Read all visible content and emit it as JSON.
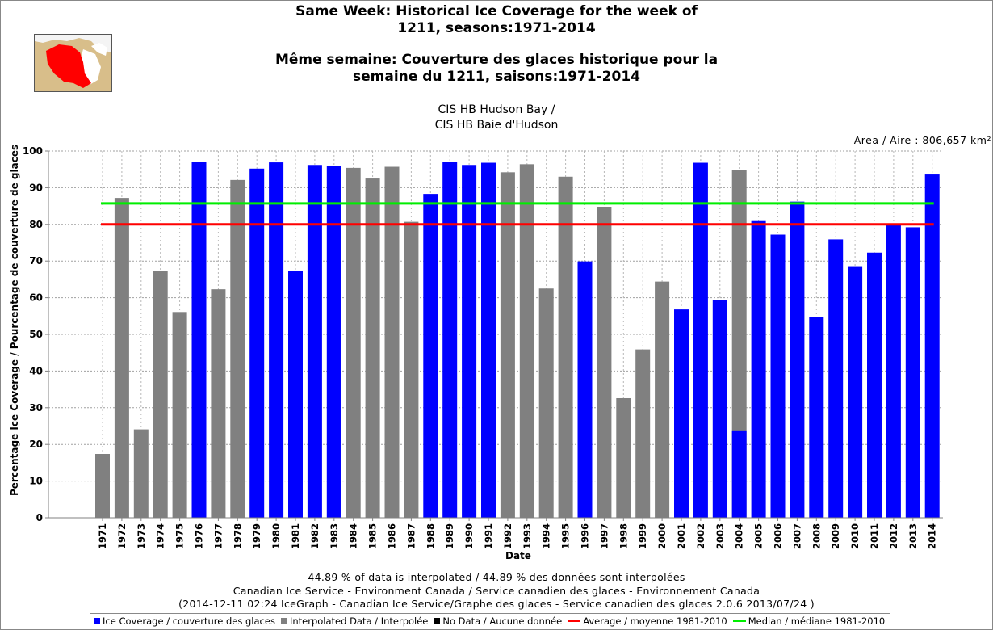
{
  "title_en": [
    "Same Week: Historical Ice Coverage for the week of",
    "1211, seasons:1971-2014"
  ],
  "title_fr": [
    "Même semaine: Couverture des glaces historique pour la",
    "semaine du 1211, saisons:1971-2014"
  ],
  "subtitle": [
    "CIS HB Hudson Bay /",
    "CIS HB Baie d'Hudson"
  ],
  "area_text": "Area / Aire : 806,657 km²",
  "colors": {
    "ice_coverage": "#0000ff",
    "interpolated": "#808080",
    "no_data": "#000000",
    "average": "#ff0000",
    "median": "#00ee00",
    "map_land": "#d8be8a",
    "map_region": "#ff0000"
  },
  "icons": {
    "region_map": "hudson-bay-region-map-icon"
  },
  "chart_data": {
    "type": "bar",
    "ylabel": "Percentage Ice Coverage / Pourcentage de couverture de glaces",
    "xlabel": "Date",
    "ylim": [
      0,
      100
    ],
    "yticks": [
      0,
      10,
      20,
      30,
      40,
      50,
      60,
      70,
      80,
      90,
      100
    ],
    "grid": true,
    "categories": [
      "1971",
      "1972",
      "1973",
      "1974",
      "1975",
      "1976",
      "1977",
      "1978",
      "1979",
      "1980",
      "1981",
      "1982",
      "1983",
      "1984",
      "1985",
      "1986",
      "1987",
      "1988",
      "1989",
      "1990",
      "1991",
      "1992",
      "1993",
      "1994",
      "1995",
      "1996",
      "1997",
      "1998",
      "1999",
      "2000",
      "2001",
      "2002",
      "2003",
      "2004",
      "2005",
      "2006",
      "2007",
      "2008",
      "2009",
      "2010",
      "2011",
      "2012",
      "2013",
      "2014"
    ],
    "series": [
      {
        "name": "Ice Coverage / couverture des glaces",
        "values": [
          null,
          null,
          null,
          null,
          null,
          97.1,
          null,
          null,
          95.2,
          96.9,
          67.3,
          96.2,
          95.9,
          null,
          null,
          null,
          null,
          88.3,
          97.1,
          96.2,
          96.8,
          null,
          null,
          null,
          null,
          69.9,
          null,
          null,
          null,
          null,
          56.8,
          96.8,
          59.3,
          23.6,
          80.9,
          77.2,
          86.2,
          54.8,
          75.9,
          68.6,
          72.3,
          79.9,
          79.2,
          93.6
        ]
      },
      {
        "name": "Interpolated Data / Interpolée",
        "values": [
          17.4,
          87.2,
          24.1,
          67.3,
          56.1,
          null,
          62.3,
          92.1,
          null,
          null,
          null,
          null,
          null,
          95.4,
          92.5,
          95.7,
          80.7,
          null,
          null,
          null,
          null,
          94.2,
          96.4,
          62.5,
          93.0,
          null,
          84.8,
          32.6,
          45.9,
          64.4,
          null,
          null,
          null,
          94.8,
          null,
          null,
          null,
          null,
          null,
          null,
          null,
          null,
          null,
          null
        ]
      }
    ],
    "average": {
      "name": "Average / moyenne 1981-2010",
      "value": 80.0
    },
    "median": {
      "name": "Median / médiane 1981-2010",
      "value": 85.7
    },
    "legend": {
      "placement": "bottom",
      "items": [
        "Ice Coverage / couverture des glaces",
        "Interpolated Data / Interpolée",
        "No Data / Aucune donnée",
        "Average / moyenne 1981-2010",
        "Median / médiane 1981-2010"
      ]
    }
  },
  "footer": [
    "44.89 % of data is interpolated / 44.89 % des données sont interpolées",
    "Canadian Ice Service - Environment Canada / Service canadien des glaces - Environnement Canada",
    "(2014-12-11 02:24 IceGraph - Canadian Ice Service/Graphe des glaces - Service canadien des glaces 2.0.6 2013/07/24 )"
  ]
}
